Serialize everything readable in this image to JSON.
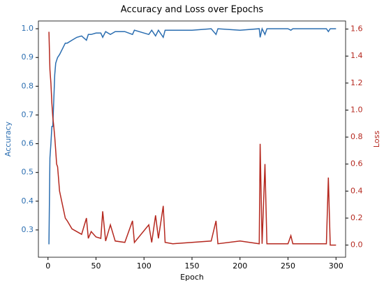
{
  "chart_data": {
    "type": "line",
    "title": "Accuracy and Loss over Epochs",
    "xlabel": "Epoch",
    "ylabel": "Accuracy",
    "y2label": "Loss",
    "x": [
      1,
      2,
      3,
      4,
      5,
      6,
      7,
      8,
      9,
      10,
      12,
      15,
      18,
      20,
      25,
      30,
      35,
      40,
      42,
      45,
      50,
      55,
      57,
      60,
      65,
      70,
      80,
      88,
      90,
      105,
      108,
      112,
      115,
      120,
      122,
      130,
      150,
      170,
      175,
      177,
      200,
      220,
      221,
      223,
      226,
      228,
      250,
      253,
      255,
      290,
      292,
      294,
      300
    ],
    "series": [
      {
        "name": "Accuracy",
        "color": "#2a6db0",
        "axis": "y",
        "values": [
          0.25,
          0.55,
          0.6,
          0.66,
          0.66,
          0.75,
          0.84,
          0.88,
          0.89,
          0.9,
          0.91,
          0.93,
          0.95,
          0.95,
          0.96,
          0.97,
          0.975,
          0.96,
          0.98,
          0.98,
          0.985,
          0.985,
          0.97,
          0.99,
          0.98,
          0.99,
          0.99,
          0.98,
          0.995,
          0.98,
          0.995,
          0.975,
          0.995,
          0.97,
          0.995,
          0.995,
          0.995,
          1.0,
          0.98,
          1.0,
          0.995,
          1.0,
          0.97,
          1.0,
          0.98,
          1.0,
          1.0,
          0.995,
          1.0,
          1.0,
          0.99,
          1.0,
          1.0
        ]
      },
      {
        "name": "Loss",
        "color": "#b5281f",
        "axis": "y2",
        "values": [
          1.58,
          1.3,
          1.2,
          1.05,
          0.95,
          0.88,
          0.8,
          0.7,
          0.6,
          0.58,
          0.4,
          0.3,
          0.2,
          0.18,
          0.12,
          0.1,
          0.08,
          0.2,
          0.05,
          0.1,
          0.06,
          0.05,
          0.25,
          0.03,
          0.15,
          0.03,
          0.02,
          0.18,
          0.02,
          0.15,
          0.02,
          0.22,
          0.05,
          0.29,
          0.02,
          0.01,
          0.02,
          0.03,
          0.18,
          0.01,
          0.03,
          0.01,
          0.75,
          0.01,
          0.6,
          0.01,
          0.01,
          0.07,
          0.01,
          0.01,
          0.5,
          0.0,
          0.0
        ]
      }
    ],
    "xlim": [
      -10,
      310
    ],
    "xticks": [
      0,
      50,
      100,
      150,
      200,
      250,
      300
    ],
    "ylim": [
      0.205,
      1.027
    ],
    "yticks": [
      0.3,
      0.4,
      0.5,
      0.6,
      0.7,
      0.8,
      0.9,
      {
        "value": 1.0,
        "label": "1.0"
      }
    ],
    "y2lim": [
      -0.09,
      1.66
    ],
    "y2ticks": [
      {
        "value": 0,
        "label": "0.0"
      },
      0.2,
      0.4,
      0.6,
      0.8,
      {
        "value": 1.0,
        "label": "1.0"
      },
      1.2,
      1.4,
      1.6
    ]
  }
}
